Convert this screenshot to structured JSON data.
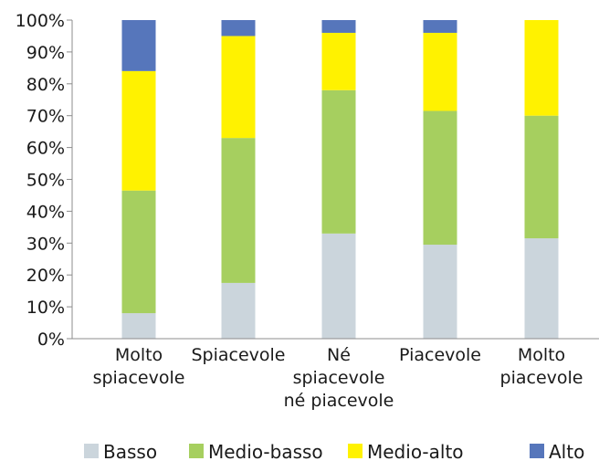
{
  "chart_data": {
    "type": "bar",
    "stacked": true,
    "percent_stacked": true,
    "categories": [
      [
        "Molto",
        "spiacevole"
      ],
      [
        "Spiacevole"
      ],
      [
        "Né",
        "spiacevole",
        "né piacevole"
      ],
      [
        "Piacevole"
      ],
      [
        "Molto",
        "piacevole"
      ]
    ],
    "series": [
      {
        "name": "Basso",
        "color": "#cbd5dc",
        "values": [
          8,
          17.5,
          33,
          29.5,
          31.5
        ]
      },
      {
        "name": "Medio-basso",
        "color": "#a6cf5f",
        "values": [
          38.5,
          45.5,
          45,
          42,
          38.5
        ]
      },
      {
        "name": "Medio-alto",
        "color": "#fff200",
        "values": [
          37.5,
          32,
          18,
          24.5,
          30
        ]
      },
      {
        "name": "Alto",
        "color": "#5676bb",
        "values": [
          16,
          5,
          4,
          4,
          0
        ]
      }
    ],
    "ylim": [
      0,
      100
    ],
    "yticks": [
      "0%",
      "10%",
      "20%",
      "30%",
      "40%",
      "50%",
      "60%",
      "70%",
      "80%",
      "90%",
      "100%"
    ],
    "grid": false,
    "legend_position": "bottom"
  }
}
